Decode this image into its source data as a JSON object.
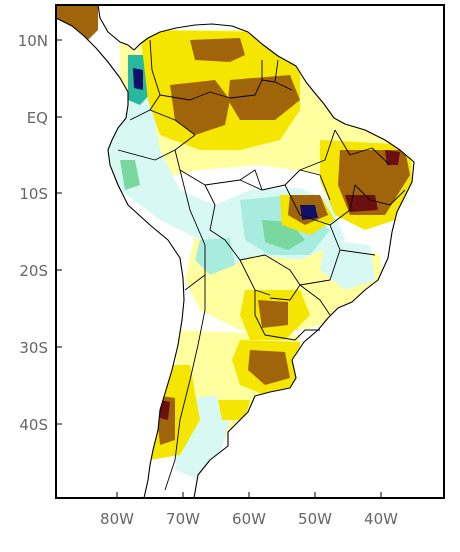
{
  "map": {
    "y_ticks": [
      "10N",
      "EQ",
      "10S",
      "20S",
      "30S",
      "40S"
    ],
    "x_ticks": [
      "80W",
      "70W",
      "60W",
      "50W",
      "40W"
    ],
    "colors": {
      "frame": "#000000",
      "ocean": "#ffffff",
      "land_base": "#ffffff",
      "pale_yellow": "#ffffa0",
      "yellow": "#f5e600",
      "light_cyan": "#d8f8f4",
      "aqua": "#a8ece0",
      "green": "#78d8a0",
      "teal": "#28b8a0",
      "brown": "#a0640a",
      "dark_red": "#6a1010",
      "dark_blue": "#10106a"
    }
  }
}
